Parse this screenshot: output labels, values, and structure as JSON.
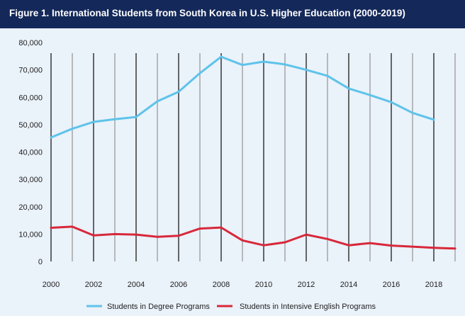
{
  "title": "Figure 1. International Students from South Korea in U.S. Higher Education (2000-2019)",
  "colors": {
    "title_bar": "#14285a",
    "background": "#eaf2fa",
    "degree_series": "#5ec3ea",
    "english_series": "#d8283a"
  },
  "chart_data": {
    "type": "line",
    "title": "Figure 1. International Students from South Korea in U.S. Higher Education (2000-2019)",
    "xlabel": "",
    "ylabel": "",
    "x": [
      2000,
      2001,
      2002,
      2003,
      2004,
      2005,
      2006,
      2007,
      2008,
      2009,
      2010,
      2011,
      2012,
      2013,
      2014,
      2015,
      2016,
      2017,
      2018,
      2019
    ],
    "x_tick_labels": [
      "2000",
      "2002",
      "2004",
      "2006",
      "2008",
      "2010",
      "2012",
      "2014",
      "2016",
      "2018"
    ],
    "y_tick_labels": [
      "0",
      "10,000",
      "20,000",
      "30,000",
      "40,000",
      "50,000",
      "60,000",
      "70,000",
      "80,000"
    ],
    "ylim": [
      0,
      80000
    ],
    "grid": "vertical lines at each year",
    "legend_position": "bottom",
    "series": [
      {
        "name": "Students in Degree Programs",
        "color": "#5ec3ea",
        "values": [
          45300,
          48500,
          51000,
          52000,
          52800,
          58500,
          62000,
          68800,
          74800,
          71800,
          73000,
          72000,
          70000,
          67800,
          63200,
          60800,
          58200,
          54300,
          51800,
          null
        ]
      },
      {
        "name": "Students in Intensive English Programs",
        "color": "#d8283a",
        "values": [
          12300,
          12700,
          9500,
          10000,
          9800,
          9000,
          9400,
          12000,
          12400,
          7700,
          5900,
          7000,
          9800,
          8200,
          5900,
          6700,
          5800,
          5400,
          5000,
          4700
        ]
      }
    ]
  }
}
